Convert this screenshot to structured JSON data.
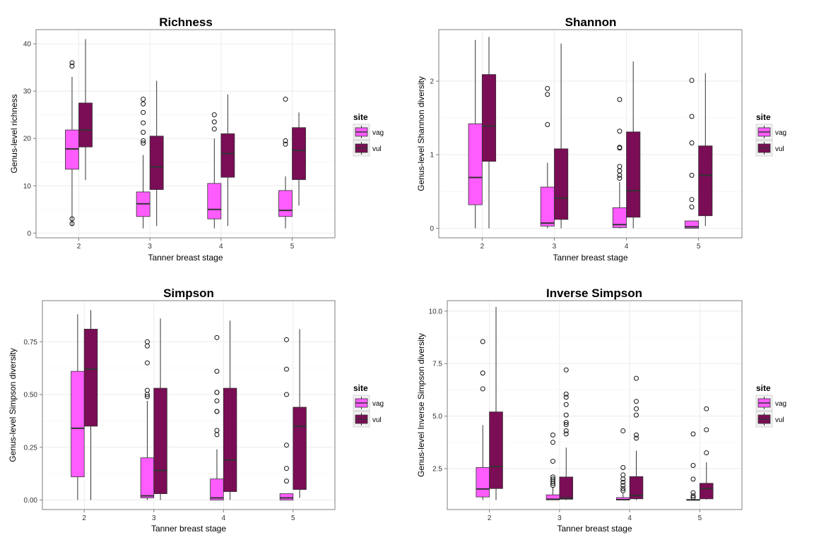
{
  "colors": {
    "vag": "#ff5cff",
    "vul": "#7a0d55",
    "panel_bg": "#ffffff",
    "grid": "#ebebeb",
    "panel_border": "#7f7f7f",
    "line": "#333333"
  },
  "legend": {
    "title": "site",
    "items": [
      {
        "key": "vag",
        "label": "vag"
      },
      {
        "key": "vul",
        "label": "vul"
      }
    ],
    "placement": "right"
  },
  "chart_data": [
    {
      "type": "box",
      "title": "Richness",
      "xlabel": "Tanner breast stage",
      "ylabel": "Genus-level richness",
      "categories": [
        "2",
        "3",
        "4",
        "5"
      ],
      "ylim": [
        -1,
        43
      ],
      "yticks": [
        0,
        10,
        20,
        30,
        40
      ],
      "ytick_labels": [
        "0",
        "10",
        "20",
        "30",
        "40"
      ],
      "grid": true,
      "series": [
        {
          "name": "vag",
          "boxes": [
            {
              "lo": 1.5,
              "q1": 13.5,
              "med": 17.8,
              "q3": 21.8,
              "hi": 33,
              "out": [
                35.3,
                36,
                3,
                2
              ]
            },
            {
              "lo": 1,
              "q1": 3.5,
              "med": 6.2,
              "q3": 8.7,
              "hi": 16.5,
              "out": [
                19,
                19.5,
                21.3,
                23.3,
                25.5,
                27.3,
                28.3
              ]
            },
            {
              "lo": 1,
              "q1": 3,
              "med": 5,
              "q3": 10.5,
              "hi": 20,
              "out": [
                22,
                23.5,
                25
              ]
            },
            {
              "lo": 1,
              "q1": 3.5,
              "med": 4.8,
              "q3": 9,
              "hi": 12,
              "out": [
                18.8,
                19.5,
                28.3
              ]
            }
          ]
        },
        {
          "name": "vul",
          "boxes": [
            {
              "lo": 11.2,
              "q1": 18.2,
              "med": 21.8,
              "q3": 27.5,
              "hi": 41,
              "out": []
            },
            {
              "lo": 1.5,
              "q1": 9.2,
              "med": 14,
              "q3": 20.5,
              "hi": 32.2,
              "out": []
            },
            {
              "lo": 1.5,
              "q1": 11.8,
              "med": 16.8,
              "q3": 21,
              "hi": 29.3,
              "out": []
            },
            {
              "lo": 5.8,
              "q1": 11.3,
              "med": 17.5,
              "q3": 22.3,
              "hi": 25.5,
              "out": []
            }
          ]
        }
      ]
    },
    {
      "type": "box",
      "title": "Shannon",
      "xlabel": "Tanner breast stage",
      "ylabel": "Genus-level Shannon diversity",
      "categories": [
        "2",
        "3",
        "4",
        "5"
      ],
      "ylim": [
        -0.13,
        2.7
      ],
      "yticks": [
        0,
        1,
        2
      ],
      "ytick_labels": [
        "0",
        "1",
        "2"
      ],
      "grid": true,
      "series": [
        {
          "name": "vag",
          "boxes": [
            {
              "lo": 0,
              "q1": 0.32,
              "med": 0.69,
              "q3": 1.42,
              "hi": 2.56,
              "out": []
            },
            {
              "lo": 0,
              "q1": 0.03,
              "med": 0.07,
              "q3": 0.56,
              "hi": 0.89,
              "out": [
                1.41,
                1.82,
                1.9
              ]
            },
            {
              "lo": 0,
              "q1": 0.01,
              "med": 0.05,
              "q3": 0.28,
              "hi": 0.63,
              "out": [
                0.68,
                0.72,
                0.78,
                0.84,
                1.09,
                1.1,
                1.32,
                1.75
              ]
            },
            {
              "lo": 0,
              "q1": 0,
              "med": 0.02,
              "q3": 0.1,
              "hi": 0.1,
              "out": [
                0.29,
                0.39,
                0.72,
                1.16,
                1.52,
                2.01
              ]
            }
          ]
        },
        {
          "name": "vul",
          "boxes": [
            {
              "lo": 0,
              "q1": 0.91,
              "med": 1.39,
              "q3": 2.09,
              "hi": 2.6,
              "out": []
            },
            {
              "lo": 0,
              "q1": 0.12,
              "med": 0.41,
              "q3": 1.08,
              "hi": 2.51,
              "out": []
            },
            {
              "lo": 0,
              "q1": 0.15,
              "med": 0.51,
              "q3": 1.31,
              "hi": 2.27,
              "out": []
            },
            {
              "lo": 0.03,
              "q1": 0.17,
              "med": 0.72,
              "q3": 1.12,
              "hi": 2.11,
              "out": []
            }
          ]
        }
      ]
    },
    {
      "type": "box",
      "title": "Simpson",
      "xlabel": "Tanner breast stage",
      "ylabel": "Genus-level Simpson diversity",
      "categories": [
        "2",
        "3",
        "4",
        "5"
      ],
      "ylim": [
        -0.045,
        0.945
      ],
      "yticks": [
        0,
        0.25,
        0.5,
        0.75
      ],
      "ytick_labels": [
        "0.00",
        "0.25",
        "0.50",
        "0.75"
      ],
      "grid": true,
      "series": [
        {
          "name": "vag",
          "boxes": [
            {
              "lo": 0,
              "q1": 0.11,
              "med": 0.34,
              "q3": 0.61,
              "hi": 0.88,
              "out": []
            },
            {
              "lo": 0,
              "q1": 0.01,
              "med": 0.02,
              "q3": 0.2,
              "hi": 0.47,
              "out": [
                0.49,
                0.5,
                0.52,
                0.65,
                0.73,
                0.75
              ]
            },
            {
              "lo": 0,
              "q1": 0,
              "med": 0.01,
              "q3": 0.1,
              "hi": 0.24,
              "out": [
                0.31,
                0.33,
                0.42,
                0.42,
                0.47,
                0.51,
                0.51,
                0.61,
                0.77
              ]
            },
            {
              "lo": 0,
              "q1": 0,
              "med": 0.01,
              "q3": 0.03,
              "hi": 0.03,
              "out": [
                0.09,
                0.15,
                0.26,
                0.5,
                0.62,
                0.76
              ]
            }
          ]
        },
        {
          "name": "vul",
          "boxes": [
            {
              "lo": 0,
              "q1": 0.35,
              "med": 0.62,
              "q3": 0.81,
              "hi": 0.9,
              "out": []
            },
            {
              "lo": 0,
              "q1": 0.03,
              "med": 0.14,
              "q3": 0.53,
              "hi": 0.86,
              "out": []
            },
            {
              "lo": 0,
              "q1": 0.04,
              "med": 0.19,
              "q3": 0.53,
              "hi": 0.85,
              "out": []
            },
            {
              "lo": 0.01,
              "q1": 0.05,
              "med": 0.35,
              "q3": 0.44,
              "hi": 0.81,
              "out": []
            }
          ]
        }
      ]
    },
    {
      "type": "box",
      "title": "Inverse Simpson",
      "xlabel": "Tanner breast stage",
      "ylabel": "Genus-level Inverse Simpson diversity",
      "categories": [
        "2",
        "3",
        "4",
        "5"
      ],
      "ylim": [
        0.55,
        10.5
      ],
      "yticks": [
        2.5,
        5,
        7.5,
        10
      ],
      "ytick_labels": [
        "2.5",
        "5.0",
        "7.5",
        "10.0"
      ],
      "grid": true,
      "series": [
        {
          "name": "vag",
          "boxes": [
            {
              "lo": 1,
              "q1": 1.15,
              "med": 1.53,
              "q3": 2.55,
              "hi": 4.57,
              "out": [
                6.3,
                7.05,
                8.55
              ]
            },
            {
              "lo": 1,
              "q1": 1.01,
              "med": 1.04,
              "q3": 1.25,
              "hi": 1.63,
              "out": [
                1.7,
                1.8,
                1.9,
                2.0,
                2.1,
                2.85,
                3.75,
                4.1
              ]
            },
            {
              "lo": 1,
              "q1": 1,
              "med": 1.02,
              "q3": 1.12,
              "hi": 1.32,
              "out": [
                1.45,
                1.55,
                1.7,
                1.85,
                2.0,
                2.2,
                2.55,
                4.3
              ]
            },
            {
              "lo": 1,
              "q1": 1,
              "med": 1.01,
              "q3": 1.03,
              "hi": 1.03,
              "out": [
                1.12,
                1.2,
                1.35,
                2.0,
                2.65,
                4.15
              ]
            }
          ]
        },
        {
          "name": "vul",
          "boxes": [
            {
              "lo": 1,
              "q1": 1.55,
              "med": 2.6,
              "q3": 5.2,
              "hi": 10.2,
              "out": []
            },
            {
              "lo": 1,
              "q1": 1.04,
              "med": 1.1,
              "q3": 2.1,
              "hi": 3.5,
              "out": [
                4.15,
                4.3,
                4.6,
                4.7,
                5.05,
                5.55,
                5.9,
                6.05,
                7.2
              ]
            },
            {
              "lo": 1,
              "q1": 1.06,
              "med": 1.22,
              "q3": 2.12,
              "hi": 3.35,
              "out": [
                3.95,
                4.1,
                5.05,
                5.35,
                5.7,
                6.8
              ]
            },
            {
              "lo": 1.02,
              "q1": 1.06,
              "med": 1.55,
              "q3": 1.8,
              "hi": 2.8,
              "out": [
                3.25,
                4.35,
                5.35
              ]
            }
          ]
        }
      ]
    }
  ]
}
